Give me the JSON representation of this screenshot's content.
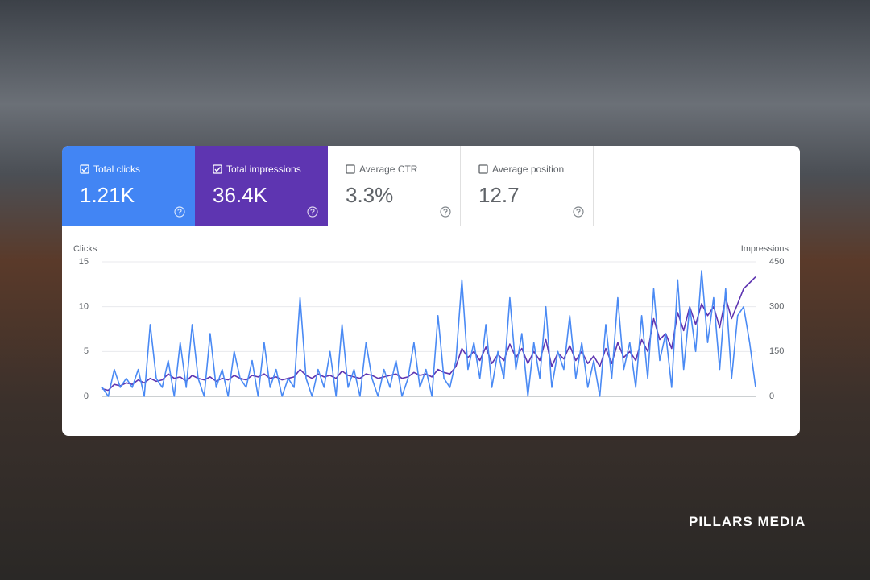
{
  "metrics": [
    {
      "label": "Total clicks",
      "value": "1.21K"
    },
    {
      "label": "Total impressions",
      "value": "36.4K"
    },
    {
      "label": "Average CTR",
      "value": "3.3%"
    },
    {
      "label": "Average position",
      "value": "12.7"
    }
  ],
  "brand": "PILLARS MEDIA",
  "chart_data": {
    "type": "line",
    "y_label": "Clicks",
    "y2_label": "Impressions",
    "ylim": [
      0,
      15
    ],
    "yticks": [
      0,
      5,
      10,
      15
    ],
    "y2lim": [
      0,
      450
    ],
    "y2ticks": [
      0,
      150,
      300,
      450
    ],
    "grid": true,
    "series": [
      {
        "name": "Clicks",
        "color": "#4a8af4",
        "values": [
          1,
          0,
          3,
          1,
          2,
          1,
          3,
          0,
          8,
          2,
          1,
          4,
          0,
          6,
          1,
          8,
          2,
          0,
          7,
          1,
          3,
          0,
          5,
          2,
          1,
          4,
          0,
          6,
          1,
          3,
          0,
          2,
          1,
          11,
          2,
          0,
          3,
          1,
          5,
          0,
          8,
          1,
          3,
          0,
          6,
          2,
          0,
          3,
          1,
          4,
          0,
          2,
          6,
          1,
          3,
          0,
          9,
          2,
          1,
          4,
          13,
          3,
          6,
          2,
          8,
          1,
          5,
          2,
          11,
          3,
          7,
          0,
          6,
          2,
          10,
          1,
          5,
          3,
          9,
          2,
          6,
          1,
          4,
          0,
          8,
          2,
          11,
          3,
          6,
          1,
          9,
          2,
          12,
          4,
          7,
          1,
          13,
          3,
          10,
          5,
          14,
          6,
          11,
          3,
          12,
          2,
          9,
          10,
          6,
          1
        ]
      },
      {
        "name": "Impressions",
        "color": "#5e35b1",
        "axis": "y2",
        "values": [
          25,
          20,
          40,
          35,
          45,
          40,
          55,
          45,
          60,
          50,
          55,
          75,
          60,
          65,
          50,
          70,
          60,
          55,
          65,
          50,
          60,
          55,
          70,
          60,
          55,
          70,
          65,
          75,
          60,
          65,
          55,
          60,
          65,
          90,
          70,
          60,
          75,
          65,
          70,
          60,
          85,
          70,
          65,
          60,
          75,
          70,
          60,
          65,
          70,
          75,
          60,
          65,
          80,
          70,
          75,
          65,
          90,
          80,
          75,
          100,
          160,
          130,
          150,
          120,
          165,
          110,
          140,
          120,
          175,
          130,
          160,
          110,
          150,
          120,
          190,
          100,
          145,
          125,
          170,
          120,
          150,
          110,
          135,
          100,
          160,
          110,
          180,
          130,
          150,
          120,
          190,
          150,
          260,
          190,
          210,
          160,
          280,
          220,
          300,
          240,
          310,
          270,
          300,
          230,
          330,
          260,
          310,
          360,
          380,
          400
        ]
      }
    ]
  }
}
